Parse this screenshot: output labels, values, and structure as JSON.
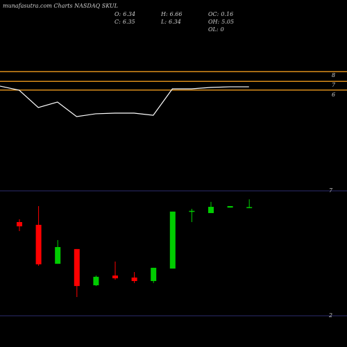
{
  "header": {
    "title": "munafasutra.com Charts NASDAQ SKUL",
    "stats": [
      {
        "label": "O:",
        "value": 6.34
      },
      {
        "label": "H:",
        "value": 6.66
      },
      {
        "label": "OC:",
        "value": 0.16
      },
      {
        "label": "C:",
        "value": 6.35
      },
      {
        "label": "L:",
        "value": 6.34
      },
      {
        "label": "OH:",
        "value": 5.05
      },
      {
        "label": "OL:",
        "value": 0
      }
    ]
  },
  "chart_data": [
    {
      "type": "line",
      "values": [
        6.71,
        6.29,
        4.5,
        5.07,
        3.57,
        3.86,
        3.93,
        3.93,
        3.71,
        6.43,
        6.43,
        6.57,
        6.64,
        6.64
      ],
      "color": "#ffffff",
      "ylim": [
        1,
        9
      ],
      "yticks": [
        6,
        7,
        8
      ],
      "hlines": [
        8.2,
        7.2,
        6.3
      ],
      "hline_color": "#d98c1a"
    },
    {
      "type": "candlestick",
      "categories": [
        null,
        null,
        null,
        null,
        null,
        null,
        null,
        null,
        null,
        null,
        null,
        null,
        null
      ],
      "open": [
        5.75,
        5.64,
        4.08,
        4.67,
        3.22,
        3.61,
        3.53,
        3.39,
        3.89,
        6.19,
        6.11,
        6.33,
        6.34
      ],
      "close": [
        5.58,
        4.06,
        4.75,
        3.19,
        3.56,
        3.5,
        3.39,
        3.92,
        6.17,
        6.2,
        6.36,
        6.39,
        6.35
      ],
      "high": [
        5.86,
        6.39,
        5.03,
        4.67,
        3.61,
        4.17,
        3.75,
        3.92,
        6.17,
        6.28,
        6.56,
        6.39,
        6.66
      ],
      "low": [
        5.39,
        4.0,
        4.08,
        2.75,
        3.19,
        3.44,
        3.31,
        3.31,
        3.89,
        5.75,
        6.11,
        6.33,
        6.34
      ],
      "up_color": "#00cc00",
      "down_color": "#ff0000",
      "ylim": [
        1.5,
        7.5
      ],
      "yticks": [
        2,
        7
      ],
      "grid": true,
      "grid_color": "#2b2b6e"
    }
  ]
}
